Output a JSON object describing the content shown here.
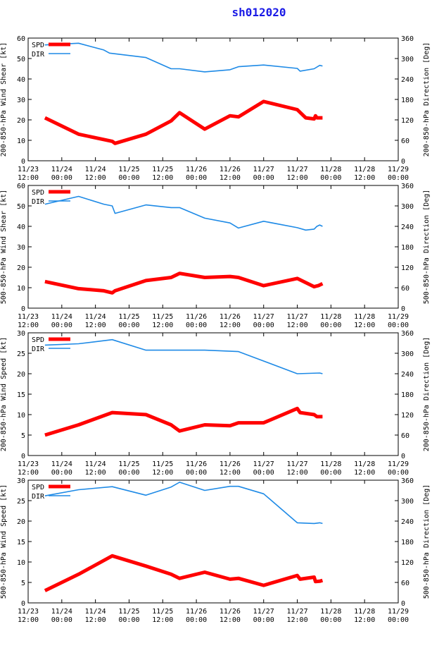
{
  "title": "sh012020",
  "colors": {
    "spd": "#ff0000",
    "dir": "#1e8ae6",
    "title": "#1a1ae6",
    "axis": "#000000",
    "background": "#ffffff"
  },
  "x_ticks": [
    {
      "date": "11/23",
      "time": "12:00"
    },
    {
      "date": "11/24",
      "time": "00:00"
    },
    {
      "date": "11/24",
      "time": "12:00"
    },
    {
      "date": "11/25",
      "time": "00:00"
    },
    {
      "date": "11/25",
      "time": "12:00"
    },
    {
      "date": "11/26",
      "time": "00:00"
    },
    {
      "date": "11/26",
      "time": "12:00"
    },
    {
      "date": "11/27",
      "time": "00:00"
    },
    {
      "date": "11/27",
      "time": "12:00"
    },
    {
      "date": "11/28",
      "time": "00:00"
    },
    {
      "date": "11/28",
      "time": "12:00"
    },
    {
      "date": "11/29",
      "time": "00:00"
    }
  ],
  "chart_data": [
    {
      "type": "line",
      "ylabel": "200-850-hPa Wind Shear [kt]",
      "y2label": "200-850-hPa Direction [Deg]",
      "ylim": [
        0,
        60
      ],
      "yticks": [
        0,
        10,
        20,
        30,
        40,
        50,
        60
      ],
      "y2lim": [
        0,
        360
      ],
      "y2ticks": [
        0,
        60,
        120,
        180,
        240,
        300,
        360
      ],
      "xlim_hours": [
        0,
        132
      ],
      "legend": [
        "SPD",
        "DIR"
      ],
      "series": [
        {
          "name": "SPD",
          "axis": "left",
          "x": [
            6,
            18,
            30,
            31,
            42,
            51,
            54,
            63,
            72,
            75,
            84,
            96,
            99,
            102,
            102.5,
            103,
            105
          ],
          "values": [
            21,
            13,
            9.5,
            8.5,
            13,
            19.5,
            23.5,
            15.5,
            22,
            21.5,
            29,
            25,
            21,
            20.5,
            22,
            21,
            21
          ]
        },
        {
          "name": "DIR",
          "axis": "right",
          "x": [
            6,
            18,
            27,
            29,
            42,
            51,
            54,
            63,
            72,
            75,
            84,
            96,
            97,
            102,
            104,
            105
          ],
          "values": [
            340,
            345,
            325,
            316,
            303,
            270,
            270,
            261,
            267,
            276,
            281,
            271,
            263,
            270,
            280,
            278
          ]
        }
      ]
    },
    {
      "type": "line",
      "ylabel": "500-850-hPa Wind Shear [kt]",
      "y2label": "500-850-hPa Direction [Deg]",
      "ylim": [
        0,
        60
      ],
      "yticks": [
        0,
        10,
        20,
        30,
        40,
        50,
        60
      ],
      "y2lim": [
        0,
        360
      ],
      "y2ticks": [
        0,
        60,
        120,
        180,
        240,
        300,
        360
      ],
      "xlim_hours": [
        0,
        132
      ],
      "legend": [
        "SPD",
        "DIR"
      ],
      "series": [
        {
          "name": "SPD",
          "axis": "left",
          "x": [
            6,
            18,
            27,
            30,
            31,
            42,
            51,
            54,
            63,
            72,
            75,
            84,
            96,
            102,
            103.5,
            105
          ],
          "values": [
            13,
            9.5,
            8.5,
            7.5,
            8.5,
            13.5,
            15,
            17,
            15,
            15.5,
            15,
            11,
            14.5,
            10.5,
            11,
            12
          ]
        },
        {
          "name": "DIR",
          "axis": "right",
          "x": [
            6,
            18,
            27,
            30,
            31,
            42,
            51,
            54,
            63,
            72,
            75,
            84,
            96,
            99,
            102,
            103,
            104,
            105
          ],
          "values": [
            305,
            328,
            305,
            300,
            278,
            303,
            295,
            295,
            264,
            250,
            235,
            255,
            236,
            229,
            232,
            240,
            244,
            240
          ]
        }
      ]
    },
    {
      "type": "line",
      "ylabel": "200-850-hPa Wind Speed [kt]",
      "y2label": "200-850-hPa Direction [Deg]",
      "ylim": [
        0,
        30
      ],
      "yticks": [
        0,
        5,
        10,
        15,
        20,
        25,
        30
      ],
      "y2lim": [
        0,
        360
      ],
      "y2ticks": [
        0,
        60,
        120,
        180,
        240,
        300,
        360
      ],
      "xlim_hours": [
        0,
        132
      ],
      "legend": [
        "SPD",
        "DIR"
      ],
      "series": [
        {
          "name": "SPD",
          "axis": "left",
          "x": [
            6,
            18,
            30,
            42,
            51,
            54,
            63,
            72,
            75,
            84,
            96,
            97,
            102,
            103,
            105
          ],
          "values": [
            5,
            7.5,
            10.5,
            10,
            7.5,
            6,
            7.5,
            7.3,
            8,
            8,
            11.5,
            10.5,
            10,
            9.5,
            9.5
          ]
        },
        {
          "name": "DIR",
          "axis": "right",
          "x": [
            6,
            18,
            30,
            42,
            63,
            75,
            96,
            104,
            105
          ],
          "values": [
            324,
            328,
            340,
            309,
            309,
            305,
            240,
            242,
            240
          ]
        }
      ]
    },
    {
      "type": "line",
      "ylabel": "500-850-hPa Wind Speed [kt]",
      "y2label": "500-850-hPa Direction [Deg]",
      "ylim": [
        0,
        30
      ],
      "yticks": [
        0,
        5,
        10,
        15,
        20,
        25,
        30
      ],
      "y2lim": [
        0,
        360
      ],
      "y2ticks": [
        0,
        60,
        120,
        180,
        240,
        300,
        360
      ],
      "xlim_hours": [
        0,
        132
      ],
      "legend": [
        "SPD",
        "DIR"
      ],
      "series": [
        {
          "name": "SPD",
          "axis": "left",
          "x": [
            6,
            18,
            30,
            42,
            51,
            54,
            63,
            72,
            75,
            84,
            96,
            97,
            102,
            102.5,
            104,
            105
          ],
          "values": [
            3,
            7,
            11.5,
            9,
            7,
            6,
            7.5,
            5.8,
            6,
            4.3,
            6.7,
            5.8,
            6.3,
            5.2,
            5.3,
            5.5
          ]
        },
        {
          "name": "DIR",
          "axis": "right",
          "x": [
            6,
            18,
            30,
            42,
            51,
            54,
            63,
            72,
            75,
            84,
            96,
            102,
            104,
            105
          ],
          "values": [
            314,
            332,
            341,
            316,
            340,
            354,
            330,
            342,
            342,
            320,
            235,
            233,
            235,
            233
          ]
        }
      ]
    }
  ]
}
